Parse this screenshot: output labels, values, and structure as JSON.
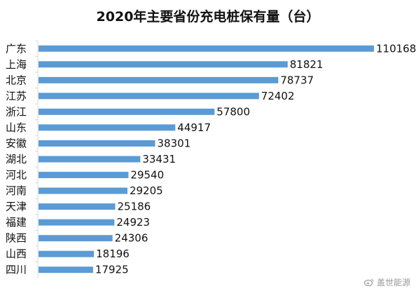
{
  "chart_data": {
    "type": "bar",
    "orientation": "horizontal",
    "title": "2020年主要省份充电桩保有量（台）",
    "categories": [
      "广东",
      "上海",
      "北京",
      "江苏",
      "浙江",
      "山东",
      "安徽",
      "湖北",
      "河北",
      "河南",
      "天津",
      "福建",
      "陕西",
      "山西",
      "四川"
    ],
    "values": [
      110168,
      81821,
      78737,
      72402,
      57800,
      44917,
      38301,
      33431,
      29540,
      29205,
      25186,
      24923,
      24306,
      18196,
      17925
    ],
    "xlabel": "",
    "ylabel": "",
    "xlim": [
      0,
      110168
    ],
    "grid": false,
    "legend": "none",
    "bar_color": "#5b9bd5"
  },
  "watermark": {
    "text": "盖世能源",
    "icon": "weibo-icon"
  }
}
